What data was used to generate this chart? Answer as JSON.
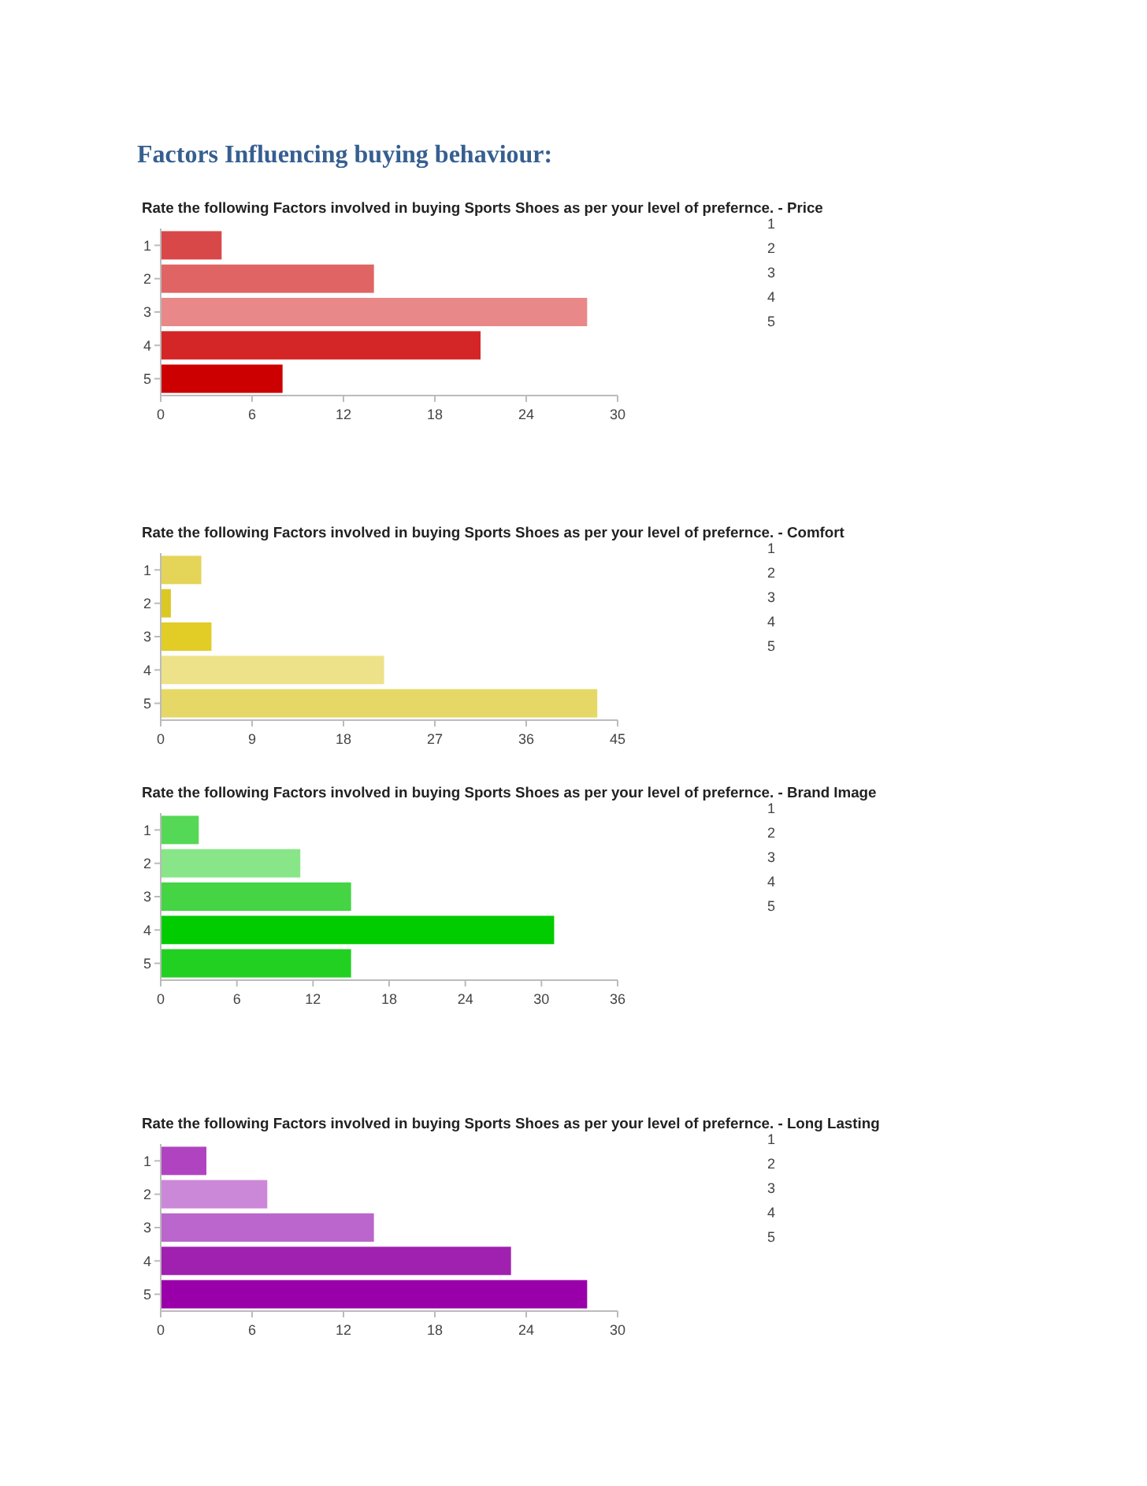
{
  "chart_data": [
    {
      "type": "bar",
      "orientation": "horizontal",
      "subtitle": "Factors Influencing buying behaviour:",
      "title": "Rate the following Factors involved in buying Sports Shoes as per your level of prefernce. - Price",
      "annotations": [
        "1",
        "2",
        "3",
        "4",
        "5"
      ],
      "categories": [
        "1",
        "2",
        "3",
        "4",
        "5"
      ],
      "values": [
        4,
        14,
        28,
        21,
        8
      ],
      "colors": [
        "#d94848",
        "#e06464",
        "#e88888",
        "#d42626",
        "#cc0000"
      ],
      "xlim": [
        0,
        30
      ],
      "xticks": [
        0,
        6,
        12,
        18,
        24,
        30
      ],
      "grid": false
    },
    {
      "type": "bar",
      "orientation": "horizontal",
      "title": "Rate the following Factors involved in buying Sports Shoes as per your level of prefernce. - Comfort",
      "annotations": [
        "1",
        "2",
        "3",
        "4",
        "5"
      ],
      "categories": [
        "1",
        "2",
        "3",
        "4",
        "5"
      ],
      "values": [
        4,
        1,
        5,
        22,
        43
      ],
      "colors": [
        "#e4d458",
        "#dcc824",
        "#e2cc26",
        "#ede28a",
        "#e6d866"
      ],
      "xlim": [
        0,
        45
      ],
      "xticks": [
        0,
        9,
        18,
        27,
        36,
        45
      ],
      "grid": false
    },
    {
      "type": "bar",
      "orientation": "horizontal",
      "title": "Rate the following Factors involved in buying Sports Shoes as per your level of prefernce. - Brand Image",
      "annotations": [
        "1",
        "2",
        "3",
        "4",
        "5"
      ],
      "categories": [
        "1",
        "2",
        "3",
        "4",
        "5"
      ],
      "values": [
        3,
        11,
        15,
        31,
        15
      ],
      "colors": [
        "#55d855",
        "#88e688",
        "#44d444",
        "#00cc00",
        "#22d022"
      ],
      "xlim": [
        0,
        36
      ],
      "xticks": [
        0,
        6,
        12,
        18,
        24,
        30,
        36
      ],
      "grid": false
    },
    {
      "type": "bar",
      "orientation": "horizontal",
      "title": "Rate the following Factors involved in buying Sports Shoes as per your level of prefernce. - Long Lasting",
      "annotations": [
        "1",
        "2",
        "3",
        "4",
        "5"
      ],
      "categories": [
        "1",
        "2",
        "3",
        "4",
        "5"
      ],
      "values": [
        3,
        7,
        14,
        23,
        28
      ],
      "colors": [
        "#b044c0",
        "#cc88d8",
        "#bb66cc",
        "#a020b0",
        "#9900aa"
      ],
      "xlim": [
        0,
        30
      ],
      "xticks": [
        0,
        6,
        12,
        18,
        24,
        30
      ],
      "grid": false
    }
  ]
}
